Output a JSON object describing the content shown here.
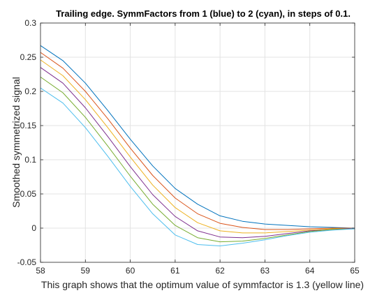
{
  "chart_data": {
    "type": "line",
    "title": "Trailing edge. SymmFactors from 1 (blue) to 2 (cyan), in steps of 0.1.",
    "xlabel": "This graph shows that the optimum value of symmfactor is 1.3 (yellow line)",
    "ylabel": "Smoothed symmetrized signal",
    "xlim": [
      58,
      65
    ],
    "ylim": [
      -0.05,
      0.3
    ],
    "xticks": [
      "58",
      "59",
      "60",
      "61",
      "62",
      "63",
      "64",
      "65"
    ],
    "yticks": [
      "-0.05",
      "0",
      "0.05",
      "0.1",
      "0.15",
      "0.2",
      "0.25",
      "0.3"
    ],
    "grid": true,
    "legend": "none",
    "x": [
      58,
      58.5,
      59,
      59.5,
      60,
      60.5,
      61,
      61.5,
      62,
      62.5,
      63,
      63.5,
      64,
      64.5,
      65
    ],
    "series": [
      {
        "color": "#0072BD",
        "values": [
          0.267,
          0.245,
          0.212,
          0.172,
          0.13,
          0.091,
          0.058,
          0.035,
          0.018,
          0.01,
          0.006,
          0.004,
          0.002,
          0.001,
          0.0
        ]
      },
      {
        "color": "#D95319",
        "values": [
          0.257,
          0.234,
          0.2,
          0.16,
          0.117,
          0.077,
          0.044,
          0.021,
          0.007,
          0.001,
          -0.002,
          -0.002,
          -0.001,
          0.0,
          0.0
        ]
      },
      {
        "color": "#EDB120",
        "values": [
          0.246,
          0.223,
          0.188,
          0.147,
          0.104,
          0.063,
          0.03,
          0.008,
          -0.004,
          -0.007,
          -0.007,
          -0.005,
          -0.003,
          -0.001,
          0.0
        ]
      },
      {
        "color": "#7E2F8E",
        "values": [
          0.235,
          0.212,
          0.176,
          0.134,
          0.09,
          0.049,
          0.017,
          -0.004,
          -0.013,
          -0.014,
          -0.012,
          -0.008,
          -0.004,
          -0.002,
          0.0
        ]
      },
      {
        "color": "#77AC30",
        "values": [
          0.221,
          0.198,
          0.162,
          0.12,
          0.076,
          0.035,
          0.004,
          -0.014,
          -0.02,
          -0.019,
          -0.015,
          -0.01,
          -0.005,
          -0.002,
          -0.001
        ]
      },
      {
        "color": "#4DBEEE",
        "values": [
          0.205,
          0.183,
          0.147,
          0.105,
          0.061,
          0.021,
          -0.01,
          -0.024,
          -0.026,
          -0.022,
          -0.017,
          -0.011,
          -0.006,
          -0.003,
          -0.001
        ]
      }
    ]
  }
}
